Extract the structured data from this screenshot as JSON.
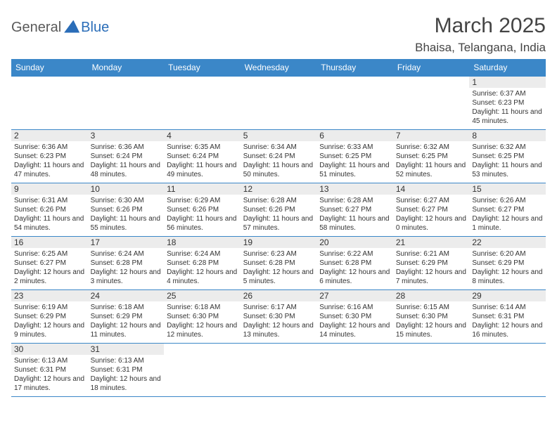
{
  "logo": {
    "part1": "General",
    "part2": "Blue"
  },
  "title": "March 2025",
  "location": "Bhaisa, Telangana, India",
  "colors": {
    "header_bg": "#3b87c8",
    "header_text": "#ffffff",
    "border": "#3b87c8",
    "daynum_bg": "#ececec",
    "text": "#333333",
    "logo_gray": "#5a5a5a",
    "logo_blue": "#2a6db8",
    "background": "#ffffff"
  },
  "typography": {
    "title_fontsize": 30,
    "location_fontsize": 17,
    "header_fontsize": 12,
    "daynum_fontsize": 12,
    "body_fontsize": 10
  },
  "day_headers": [
    "Sunday",
    "Monday",
    "Tuesday",
    "Wednesday",
    "Thursday",
    "Friday",
    "Saturday"
  ],
  "weeks": [
    [
      {
        "n": "",
        "sunrise": "",
        "sunset": "",
        "daylight": ""
      },
      {
        "n": "",
        "sunrise": "",
        "sunset": "",
        "daylight": ""
      },
      {
        "n": "",
        "sunrise": "",
        "sunset": "",
        "daylight": ""
      },
      {
        "n": "",
        "sunrise": "",
        "sunset": "",
        "daylight": ""
      },
      {
        "n": "",
        "sunrise": "",
        "sunset": "",
        "daylight": ""
      },
      {
        "n": "",
        "sunrise": "",
        "sunset": "",
        "daylight": ""
      },
      {
        "n": "1",
        "sunrise": "Sunrise: 6:37 AM",
        "sunset": "Sunset: 6:23 PM",
        "daylight": "Daylight: 11 hours and 45 minutes."
      }
    ],
    [
      {
        "n": "2",
        "sunrise": "Sunrise: 6:36 AM",
        "sunset": "Sunset: 6:23 PM",
        "daylight": "Daylight: 11 hours and 47 minutes."
      },
      {
        "n": "3",
        "sunrise": "Sunrise: 6:36 AM",
        "sunset": "Sunset: 6:24 PM",
        "daylight": "Daylight: 11 hours and 48 minutes."
      },
      {
        "n": "4",
        "sunrise": "Sunrise: 6:35 AM",
        "sunset": "Sunset: 6:24 PM",
        "daylight": "Daylight: 11 hours and 49 minutes."
      },
      {
        "n": "5",
        "sunrise": "Sunrise: 6:34 AM",
        "sunset": "Sunset: 6:24 PM",
        "daylight": "Daylight: 11 hours and 50 minutes."
      },
      {
        "n": "6",
        "sunrise": "Sunrise: 6:33 AM",
        "sunset": "Sunset: 6:25 PM",
        "daylight": "Daylight: 11 hours and 51 minutes."
      },
      {
        "n": "7",
        "sunrise": "Sunrise: 6:32 AM",
        "sunset": "Sunset: 6:25 PM",
        "daylight": "Daylight: 11 hours and 52 minutes."
      },
      {
        "n": "8",
        "sunrise": "Sunrise: 6:32 AM",
        "sunset": "Sunset: 6:25 PM",
        "daylight": "Daylight: 11 hours and 53 minutes."
      }
    ],
    [
      {
        "n": "9",
        "sunrise": "Sunrise: 6:31 AM",
        "sunset": "Sunset: 6:26 PM",
        "daylight": "Daylight: 11 hours and 54 minutes."
      },
      {
        "n": "10",
        "sunrise": "Sunrise: 6:30 AM",
        "sunset": "Sunset: 6:26 PM",
        "daylight": "Daylight: 11 hours and 55 minutes."
      },
      {
        "n": "11",
        "sunrise": "Sunrise: 6:29 AM",
        "sunset": "Sunset: 6:26 PM",
        "daylight": "Daylight: 11 hours and 56 minutes."
      },
      {
        "n": "12",
        "sunrise": "Sunrise: 6:28 AM",
        "sunset": "Sunset: 6:26 PM",
        "daylight": "Daylight: 11 hours and 57 minutes."
      },
      {
        "n": "13",
        "sunrise": "Sunrise: 6:28 AM",
        "sunset": "Sunset: 6:27 PM",
        "daylight": "Daylight: 11 hours and 58 minutes."
      },
      {
        "n": "14",
        "sunrise": "Sunrise: 6:27 AM",
        "sunset": "Sunset: 6:27 PM",
        "daylight": "Daylight: 12 hours and 0 minutes."
      },
      {
        "n": "15",
        "sunrise": "Sunrise: 6:26 AM",
        "sunset": "Sunset: 6:27 PM",
        "daylight": "Daylight: 12 hours and 1 minute."
      }
    ],
    [
      {
        "n": "16",
        "sunrise": "Sunrise: 6:25 AM",
        "sunset": "Sunset: 6:27 PM",
        "daylight": "Daylight: 12 hours and 2 minutes."
      },
      {
        "n": "17",
        "sunrise": "Sunrise: 6:24 AM",
        "sunset": "Sunset: 6:28 PM",
        "daylight": "Daylight: 12 hours and 3 minutes."
      },
      {
        "n": "18",
        "sunrise": "Sunrise: 6:24 AM",
        "sunset": "Sunset: 6:28 PM",
        "daylight": "Daylight: 12 hours and 4 minutes."
      },
      {
        "n": "19",
        "sunrise": "Sunrise: 6:23 AM",
        "sunset": "Sunset: 6:28 PM",
        "daylight": "Daylight: 12 hours and 5 minutes."
      },
      {
        "n": "20",
        "sunrise": "Sunrise: 6:22 AM",
        "sunset": "Sunset: 6:28 PM",
        "daylight": "Daylight: 12 hours and 6 minutes."
      },
      {
        "n": "21",
        "sunrise": "Sunrise: 6:21 AM",
        "sunset": "Sunset: 6:29 PM",
        "daylight": "Daylight: 12 hours and 7 minutes."
      },
      {
        "n": "22",
        "sunrise": "Sunrise: 6:20 AM",
        "sunset": "Sunset: 6:29 PM",
        "daylight": "Daylight: 12 hours and 8 minutes."
      }
    ],
    [
      {
        "n": "23",
        "sunrise": "Sunrise: 6:19 AM",
        "sunset": "Sunset: 6:29 PM",
        "daylight": "Daylight: 12 hours and 9 minutes."
      },
      {
        "n": "24",
        "sunrise": "Sunrise: 6:18 AM",
        "sunset": "Sunset: 6:29 PM",
        "daylight": "Daylight: 12 hours and 11 minutes."
      },
      {
        "n": "25",
        "sunrise": "Sunrise: 6:18 AM",
        "sunset": "Sunset: 6:30 PM",
        "daylight": "Daylight: 12 hours and 12 minutes."
      },
      {
        "n": "26",
        "sunrise": "Sunrise: 6:17 AM",
        "sunset": "Sunset: 6:30 PM",
        "daylight": "Daylight: 12 hours and 13 minutes."
      },
      {
        "n": "27",
        "sunrise": "Sunrise: 6:16 AM",
        "sunset": "Sunset: 6:30 PM",
        "daylight": "Daylight: 12 hours and 14 minutes."
      },
      {
        "n": "28",
        "sunrise": "Sunrise: 6:15 AM",
        "sunset": "Sunset: 6:30 PM",
        "daylight": "Daylight: 12 hours and 15 minutes."
      },
      {
        "n": "29",
        "sunrise": "Sunrise: 6:14 AM",
        "sunset": "Sunset: 6:31 PM",
        "daylight": "Daylight: 12 hours and 16 minutes."
      }
    ],
    [
      {
        "n": "30",
        "sunrise": "Sunrise: 6:13 AM",
        "sunset": "Sunset: 6:31 PM",
        "daylight": "Daylight: 12 hours and 17 minutes."
      },
      {
        "n": "31",
        "sunrise": "Sunrise: 6:13 AM",
        "sunset": "Sunset: 6:31 PM",
        "daylight": "Daylight: 12 hours and 18 minutes."
      },
      {
        "n": "",
        "sunrise": "",
        "sunset": "",
        "daylight": ""
      },
      {
        "n": "",
        "sunrise": "",
        "sunset": "",
        "daylight": ""
      },
      {
        "n": "",
        "sunrise": "",
        "sunset": "",
        "daylight": ""
      },
      {
        "n": "",
        "sunrise": "",
        "sunset": "",
        "daylight": ""
      },
      {
        "n": "",
        "sunrise": "",
        "sunset": "",
        "daylight": ""
      }
    ]
  ]
}
